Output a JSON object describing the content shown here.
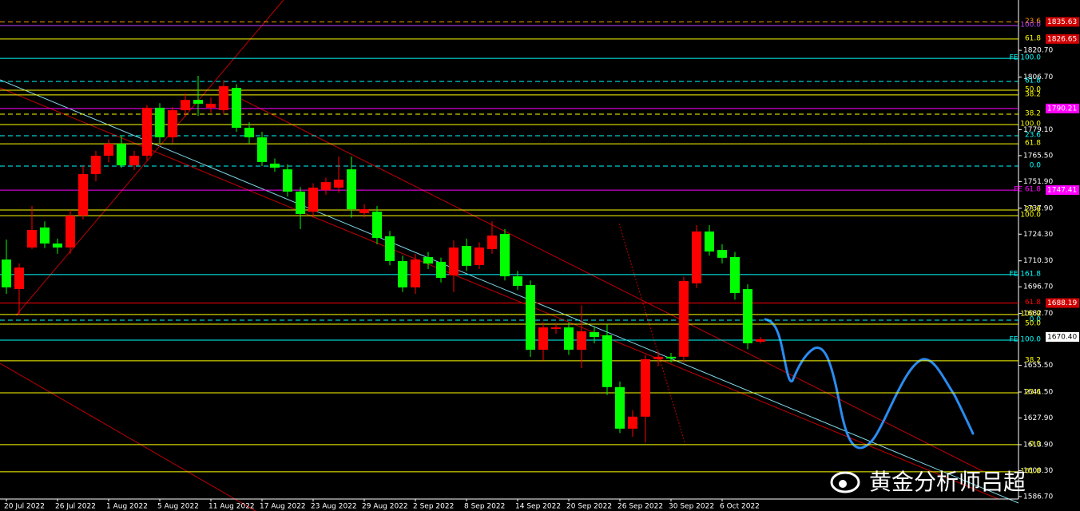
{
  "chart_data": {
    "type": "candlestick",
    "categories": [
      "20 Jul 2022",
      null,
      null,
      null,
      "26 Jul 2022",
      null,
      null,
      null,
      "1 Aug 2022",
      null,
      null,
      null,
      "5 Aug 2022",
      null,
      null,
      null,
      "11 Aug 2022",
      null,
      null,
      null,
      "17 Aug 2022",
      null,
      null,
      null,
      "23 Aug 2022",
      null,
      null,
      null,
      "29 Aug 2022",
      null,
      null,
      null,
      "2 Sep 2022",
      null,
      null,
      null,
      "8 Sep 2022",
      null,
      null,
      null,
      "14 Sep 2022",
      null,
      null,
      null,
      "20 Sep 2022",
      null,
      null,
      null,
      "26 Sep 2022",
      null,
      null,
      null,
      "30 Sep 2022",
      null,
      null,
      null,
      "6 Oct 2022",
      null,
      null,
      null
    ],
    "ohlc": [
      [
        1711.0,
        1721.5,
        1693.0,
        1696.4
      ],
      [
        1695.5,
        1709,
        1681.7,
        1706.8
      ],
      [
        1717.3,
        1739.1,
        1716.5,
        1726.5
      ],
      [
        1727.8,
        1731,
        1717,
        1719.4
      ],
      [
        1719.4,
        1722,
        1714,
        1717.3
      ],
      [
        1717.3,
        1737,
        1714,
        1734.0
      ],
      [
        1734.0,
        1760,
        1732,
        1755.8
      ],
      [
        1755.8,
        1768,
        1752,
        1765.4
      ],
      [
        1765.4,
        1774,
        1762,
        1771.7
      ],
      [
        1771.7,
        1776,
        1759,
        1760.4
      ],
      [
        1760.4,
        1768,
        1758,
        1765.4
      ],
      [
        1765.4,
        1792,
        1763,
        1790.6
      ],
      [
        1790.6,
        1793,
        1772,
        1775.1
      ],
      [
        1775.1,
        1791,
        1772,
        1789.3
      ],
      [
        1789.3,
        1798,
        1786,
        1794.7
      ],
      [
        1794.7,
        1807.3,
        1786.4,
        1792.7
      ],
      [
        1790.6,
        1796,
        1788,
        1792.7
      ],
      [
        1789.3,
        1805,
        1787,
        1801.9
      ],
      [
        1801.0,
        1803,
        1778,
        1780.1
      ],
      [
        1780.1,
        1783,
        1772,
        1775.1
      ],
      [
        1775.1,
        1778,
        1760,
        1762.1
      ],
      [
        1761.3,
        1764,
        1757,
        1759.2
      ],
      [
        1758.3,
        1761,
        1744,
        1746.6
      ],
      [
        1746.6,
        1749,
        1727,
        1734.9
      ],
      [
        1736.1,
        1751,
        1733,
        1748.7
      ],
      [
        1747.4,
        1754,
        1745,
        1751.6
      ],
      [
        1748.7,
        1765,
        1746,
        1752.9
      ],
      [
        1758.3,
        1765,
        1733,
        1737.4
      ],
      [
        1735.3,
        1740,
        1733,
        1737.4
      ],
      [
        1736.1,
        1739,
        1719,
        1722.3
      ],
      [
        1723.2,
        1726,
        1708,
        1710.2
      ],
      [
        1710.2,
        1713,
        1694,
        1696.4
      ],
      [
        1696.4,
        1714,
        1693,
        1711.0
      ],
      [
        1712.3,
        1715,
        1706,
        1708.9
      ],
      [
        1709.8,
        1712,
        1699,
        1701.4
      ],
      [
        1702.7,
        1721,
        1694,
        1717.3
      ],
      [
        1718.1,
        1722,
        1705,
        1707.7
      ],
      [
        1708.1,
        1720,
        1706,
        1717.3
      ],
      [
        1716.5,
        1731,
        1714,
        1723.6
      ],
      [
        1724.4,
        1727,
        1700,
        1702.2
      ],
      [
        1702.2,
        1705,
        1695,
        1697.2
      ],
      [
        1697.6,
        1700,
        1660,
        1663.7
      ],
      [
        1663.7,
        1678,
        1658,
        1675.4
      ],
      [
        1674.6,
        1678,
        1672,
        1675.4
      ],
      [
        1675.4,
        1678,
        1661,
        1663.7
      ],
      [
        1663.7,
        1687,
        1654,
        1673.4
      ],
      [
        1672.9,
        1676,
        1667,
        1670.4
      ],
      [
        1671.3,
        1677,
        1640,
        1644.1
      ],
      [
        1644.1,
        1647,
        1620,
        1622.3
      ],
      [
        1622.3,
        1632,
        1618,
        1628.6
      ],
      [
        1628.6,
        1661,
        1615,
        1658.7
      ],
      [
        1658.7,
        1663,
        1655,
        1660.0
      ],
      [
        1660.0,
        1662,
        1657,
        1659.1
      ],
      [
        1660.0,
        1702,
        1657,
        1699.7
      ],
      [
        1698.5,
        1729,
        1696,
        1725.7
      ],
      [
        1725.7,
        1729,
        1713,
        1715.2
      ],
      [
        1716.0,
        1719,
        1709,
        1711.9
      ],
      [
        1712.3,
        1715,
        1690,
        1693.4
      ],
      [
        1695.5,
        1698,
        1664,
        1667.1
      ],
      [
        1667.9,
        1670.4,
        1667,
        1669.2
      ]
    ],
    "up_color": "#ff0000",
    "down_color": "#00ff00",
    "ylim": [
      1585.4,
      1847.1
    ],
    "yticks": [
      {
        "value": 1820.7,
        "label": "1820.70"
      },
      {
        "value": 1806.7,
        "label": "1806.70"
      },
      {
        "value": 1779.1,
        "label": "1779.10"
      },
      {
        "value": 1765.5,
        "label": "1765.50"
      },
      {
        "value": 1751.9,
        "label": "1751.90"
      },
      {
        "value": 1737.9,
        "label": "1737.90"
      },
      {
        "value": 1724.3,
        "label": "1724.30"
      },
      {
        "value": 1710.3,
        "label": "1710.30"
      },
      {
        "value": 1696.7,
        "label": "1696.70"
      },
      {
        "value": 1682.7,
        "label": "1682.70"
      },
      {
        "value": 1655.5,
        "label": "1655.50"
      },
      {
        "value": 1641.5,
        "label": "1641.50"
      },
      {
        "value": 1627.9,
        "label": "1627.90"
      },
      {
        "value": 1613.9,
        "label": "1613.90"
      },
      {
        "value": 1600.3,
        "label": "1600.30"
      },
      {
        "value": 1586.7,
        "label": "1586.70"
      }
    ],
    "grid": true,
    "levels": [
      {
        "price": 1835.63,
        "label": "23.6",
        "color": "#ff9900",
        "dashed": true,
        "box_color": "#d00000"
      },
      {
        "price": 1833.7,
        "label": "100.0",
        "color": "#c040ff",
        "dashed": false
      },
      {
        "price": 1826.65,
        "label": "61.8",
        "color": "#ffff00",
        "dashed": false,
        "box_color": "#d00000"
      },
      {
        "price": 1816.5,
        "label": "FE 100.0",
        "color": "#00ffff",
        "dashed": false
      },
      {
        "price": 1804.4,
        "label": "61.8",
        "color": "#00ffff",
        "dashed": true
      },
      {
        "price": 1799.8,
        "label": "50.0",
        "color": "#ffff00",
        "dashed": false
      },
      {
        "price": 1797.3,
        "label": "38.2",
        "color": "#ffff00",
        "dashed": false
      },
      {
        "price": 1790.21,
        "color": "#ff00ff",
        "dashed": false,
        "box_color": "#ff00ff"
      },
      {
        "price": 1787.2,
        "label": "38.2",
        "color": "#ffff00",
        "dashed": true
      },
      {
        "price": 1781.8,
        "label": "100.0",
        "color": "#ffff00",
        "dashed": false
      },
      {
        "price": 1775.9,
        "label": "23.6",
        "color": "#00ffff",
        "dashed": true
      },
      {
        "price": 1771.7,
        "label": "61.8",
        "color": "#ffff00",
        "dashed": false
      },
      {
        "price": 1760.0,
        "label": "0.0",
        "color": "#00ffff",
        "dashed": true
      },
      {
        "price": 1747.41,
        "label": "FE 61.8",
        "color": "#ff00ff",
        "dashed": false,
        "box_color": "#ff00ff"
      },
      {
        "price": 1737.0,
        "label": "23.6",
        "color": "#ffff00",
        "dashed": false
      },
      {
        "price": 1734.0,
        "label": "100.0",
        "color": "#ffff00",
        "dashed": false
      },
      {
        "price": 1703.1,
        "label": "FE 161.8",
        "color": "#00ffff",
        "dashed": false
      },
      {
        "price": 1688.19,
        "label": "61.8",
        "color": "#ff0000",
        "dashed": false,
        "box_color": "#d00000"
      },
      {
        "price": 1682.2,
        "label": "100.0",
        "color": "#ffff00",
        "dashed": false
      },
      {
        "price": 1679.2,
        "label": "0.0",
        "color": "#00ffff",
        "dashed": true
      },
      {
        "price": 1677.1,
        "label": "50.0",
        "color": "#ffff00",
        "dashed": false
      },
      {
        "price": 1668.7,
        "label": "FE 100.0",
        "color": "#00ffff",
        "dashed": false
      },
      {
        "price": 1657.9,
        "label": "38.2",
        "color": "#ffff00",
        "dashed": false
      },
      {
        "price": 1641.1,
        "label": "23.6",
        "color": "#ffff00",
        "dashed": false
      },
      {
        "price": 1613.9,
        "label": "0.0",
        "color": "#ffff00",
        "dashed": false
      },
      {
        "price": 1599.7,
        "label": "161.8",
        "color": "#ffff00",
        "dashed": false
      }
    ],
    "current_price": {
      "value": 1670.4,
      "label": "1670.40"
    },
    "watermark": "黄金分析师吕超"
  }
}
